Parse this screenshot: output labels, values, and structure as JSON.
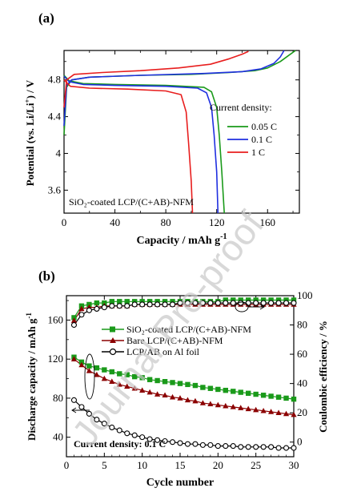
{
  "watermark": "Journal Pre-proof",
  "colors": {
    "green": "#1a9a1a",
    "blue": "#1f2fe0",
    "red": "#e81e1e",
    "darkred": "#8b0000",
    "black": "#000000",
    "watermark": "#c8c8c8"
  },
  "chart_data": [
    {
      "panel_label": "(a)",
      "type": "line",
      "xlabel": "Capacity / mAh g",
      "xlabel_sup": "-1",
      "ylabel": "Potential (vs. Li/Li",
      "ylabel_sup": "+",
      "ylabel_end": ") / V",
      "xlim": [
        0,
        185
      ],
      "ylim": [
        3.35,
        5.12
      ],
      "x_ticks": [
        0,
        40,
        80,
        120,
        160
      ],
      "y_ticks": [
        3.6,
        4.0,
        4.4,
        4.8
      ],
      "y_tick_labels": [
        "3.6",
        "4",
        "4.4",
        "4.8"
      ],
      "legend_title": "Current density:",
      "annotation": "SiO₂-coated LCP/(C+AB)-NFM",
      "series": [
        {
          "name": "0.05 C",
          "color": "green",
          "charge": [
            [
              0,
              4.2
            ],
            [
              2,
              4.72
            ],
            [
              6,
              4.8
            ],
            [
              20,
              4.83
            ],
            [
              60,
              4.85
            ],
            [
              100,
              4.86
            ],
            [
              130,
              4.88
            ],
            [
              150,
              4.9
            ],
            [
              160,
              4.93
            ],
            [
              170,
              5.0
            ],
            [
              177,
              5.07
            ],
            [
              182,
              5.12
            ]
          ],
          "discharge": [
            [
              0,
              4.85
            ],
            [
              4,
              4.79
            ],
            [
              15,
              4.76
            ],
            [
              40,
              4.75
            ],
            [
              80,
              4.74
            ],
            [
              110,
              4.72
            ],
            [
              116,
              4.67
            ],
            [
              120,
              4.5
            ],
            [
              122,
              4.2
            ],
            [
              124,
              3.8
            ],
            [
              126,
              3.35
            ]
          ]
        },
        {
          "name": "0.1 C",
          "color": "blue",
          "charge": [
            [
              0,
              4.3
            ],
            [
              2,
              4.74
            ],
            [
              6,
              4.8
            ],
            [
              20,
              4.83
            ],
            [
              60,
              4.85
            ],
            [
              110,
              4.87
            ],
            [
              140,
              4.89
            ],
            [
              155,
              4.92
            ],
            [
              165,
              4.98
            ],
            [
              170,
              5.05
            ],
            [
              173,
              5.12
            ]
          ],
          "discharge": [
            [
              0,
              4.84
            ],
            [
              4,
              4.78
            ],
            [
              15,
              4.75
            ],
            [
              40,
              4.74
            ],
            [
              80,
              4.73
            ],
            [
              105,
              4.71
            ],
            [
              112,
              4.66
            ],
            [
              116,
              4.5
            ],
            [
              118,
              4.2
            ],
            [
              120,
              3.8
            ],
            [
              121,
              3.35
            ]
          ]
        },
        {
          "name": "1 C",
          "color": "red",
          "charge": [
            [
              0,
              4.5
            ],
            [
              2,
              4.8
            ],
            [
              8,
              4.86
            ],
            [
              30,
              4.88
            ],
            [
              60,
              4.9
            ],
            [
              90,
              4.93
            ],
            [
              115,
              4.97
            ],
            [
              130,
              5.03
            ],
            [
              140,
              5.08
            ],
            [
              145,
              5.11
            ]
          ],
          "discharge": [
            [
              0,
              4.8
            ],
            [
              5,
              4.73
            ],
            [
              20,
              4.71
            ],
            [
              50,
              4.7
            ],
            [
              80,
              4.68
            ],
            [
              92,
              4.64
            ],
            [
              96,
              4.45
            ],
            [
              98,
              4.1
            ],
            [
              100,
              3.7
            ],
            [
              101,
              3.35
            ]
          ]
        }
      ]
    },
    {
      "panel_label": "(b)",
      "type": "line",
      "xlabel": "Cycle number",
      "ylabel": "Discharge capacity / mAh g",
      "ylabel_sup": "-1",
      "y2label": "Coulombic efficiency / %",
      "xlim": [
        0,
        30
      ],
      "ylim": [
        20,
        185
      ],
      "y2lim": [
        -10,
        100
      ],
      "x_ticks": [
        0,
        5,
        10,
        15,
        20,
        25,
        30
      ],
      "y_ticks": [
        40,
        80,
        120,
        160
      ],
      "y2_ticks": [
        0,
        20,
        40,
        60,
        80,
        100
      ],
      "annotation": "Current density: 0.1 C",
      "x": [
        1,
        2,
        3,
        4,
        5,
        6,
        7,
        8,
        9,
        10,
        11,
        12,
        13,
        14,
        15,
        16,
        17,
        18,
        19,
        20,
        21,
        22,
        23,
        24,
        25,
        26,
        27,
        28,
        29,
        30
      ],
      "series": [
        {
          "name": "SiO₂-coated LCP/(C+AB)-NFM",
          "color": "green",
          "marker": "square",
          "capacity": [
            122,
            117,
            113,
            111,
            109,
            107,
            105,
            104,
            102,
            101,
            99,
            98,
            97,
            96,
            95,
            94,
            93,
            91,
            90,
            89,
            88,
            87,
            86,
            85,
            84,
            83,
            82,
            81,
            80,
            79
          ],
          "efficiency": [
            85,
            93,
            94,
            95,
            95,
            96,
            96,
            96,
            96,
            96,
            96,
            96,
            96,
            96,
            96,
            96,
            96,
            96,
            96,
            96,
            97,
            97,
            97,
            97,
            97,
            97,
            97,
            97,
            97,
            97
          ]
        },
        {
          "name": "Bare LCP/(C+AB)-NFM",
          "color": "darkred",
          "marker": "triangle",
          "capacity": [
            120,
            114,
            108,
            104,
            100,
            97,
            94,
            92,
            90,
            88,
            86,
            84,
            83,
            81,
            80,
            78,
            77,
            75,
            74,
            73,
            72,
            71,
            70,
            69,
            68,
            67,
            66,
            65,
            64,
            63
          ],
          "efficiency": [
            83,
            91,
            92,
            92,
            93,
            93,
            93,
            93,
            94,
            94,
            94,
            94,
            94,
            94,
            94,
            94,
            94,
            94,
            94,
            94,
            94,
            94,
            94,
            94,
            94,
            94,
            94,
            94,
            94,
            94
          ]
        },
        {
          "name": "LCP/AB on Al foil",
          "color": "black",
          "marker": "circle",
          "capacity": [
            78,
            71,
            64,
            58,
            54,
            50,
            47,
            44,
            42,
            40,
            38,
            37,
            36,
            35,
            34,
            33,
            33,
            32,
            32,
            31,
            31,
            31,
            30,
            30,
            30,
            30,
            30,
            29,
            29,
            29
          ],
          "efficiency": [
            80,
            87,
            90,
            91,
            92,
            93,
            93,
            93,
            94,
            94,
            94,
            94,
            94,
            94,
            95,
            95,
            95,
            95,
            95,
            95,
            95,
            95,
            95,
            95,
            95,
            95,
            95,
            95,
            95,
            95
          ]
        }
      ]
    }
  ]
}
